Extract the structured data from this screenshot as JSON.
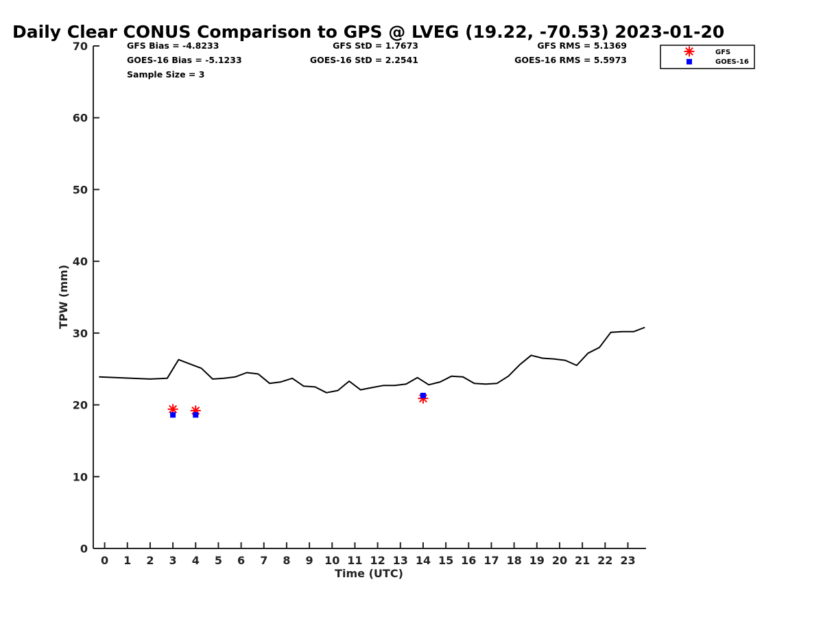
{
  "chart_data": {
    "type": "line",
    "title": "Daily Clear CONUS Comparison to GPS @ LVEG (19.22, -70.53) 2023-01-20",
    "xlabel": "Time (UTC)",
    "ylabel": "TPW (mm)",
    "xlim": [
      -0.5,
      23.8
    ],
    "ylim": [
      0,
      70
    ],
    "xticks": [
      "0",
      "1",
      "2",
      "3",
      "4",
      "5",
      "6",
      "7",
      "8",
      "9",
      "10",
      "11",
      "12",
      "13",
      "14",
      "15",
      "16",
      "17",
      "18",
      "19",
      "20",
      "21",
      "22",
      "23"
    ],
    "yticks": [
      "0",
      "10",
      "20",
      "30",
      "40",
      "50",
      "60",
      "70"
    ],
    "stats": {
      "gfs_bias": "GFS Bias = -4.8233",
      "goes_bias": "GOES-16 Bias = -5.1233",
      "sample_size": "Sample Size = 3",
      "gfs_std": "GFS StD = 1.7673",
      "goes_std": "GOES-16 StD = 2.2541",
      "gfs_rms": "GFS RMS = 5.1369",
      "goes_rms": "GOES-16 RMS = 5.5973"
    },
    "legend": {
      "gfs": "GFS",
      "goes": "GOES-16",
      "position": "top-right"
    },
    "series": [
      {
        "name": "GPS",
        "color": "#000000",
        "style": "line",
        "x": [
          -0.25,
          2.0,
          2.75,
          3.25,
          3.75,
          4.25,
          4.75,
          5.25,
          5.75,
          6.25,
          6.75,
          7.25,
          7.75,
          8.25,
          8.75,
          9.25,
          9.75,
          10.25,
          10.75,
          11.25,
          11.75,
          12.25,
          12.75,
          13.25,
          13.75,
          14.25,
          14.75,
          15.25,
          15.75,
          16.25,
          16.75,
          17.25,
          17.75,
          18.25,
          18.75,
          19.25,
          19.75,
          20.25,
          20.75,
          21.25,
          21.75,
          22.25,
          22.75,
          23.25,
          23.75
        ],
        "y": [
          23.9,
          23.6,
          23.7,
          26.3,
          25.7,
          25.1,
          23.6,
          23.7,
          23.9,
          24.5,
          24.3,
          23.0,
          23.2,
          23.7,
          22.6,
          22.5,
          21.7,
          22.0,
          23.3,
          22.1,
          22.4,
          22.7,
          22.7,
          22.9,
          23.8,
          22.8,
          23.2,
          24.0,
          23.9,
          23.0,
          22.9,
          23.0,
          24.0,
          25.6,
          26.9,
          26.5,
          26.4,
          26.2,
          25.5,
          27.2,
          28.0,
          30.1,
          30.2,
          30.2,
          30.8
        ]
      },
      {
        "name": "GFS",
        "color": "#ff0000",
        "style": "star",
        "x": [
          3.0,
          4.0,
          14.0
        ],
        "y": [
          19.4,
          19.2,
          20.9
        ]
      },
      {
        "name": "GOES-16",
        "color": "#0000ff",
        "style": "square",
        "x": [
          3.0,
          4.0,
          14.0
        ],
        "y": [
          18.6,
          18.6,
          21.3
        ]
      }
    ]
  }
}
